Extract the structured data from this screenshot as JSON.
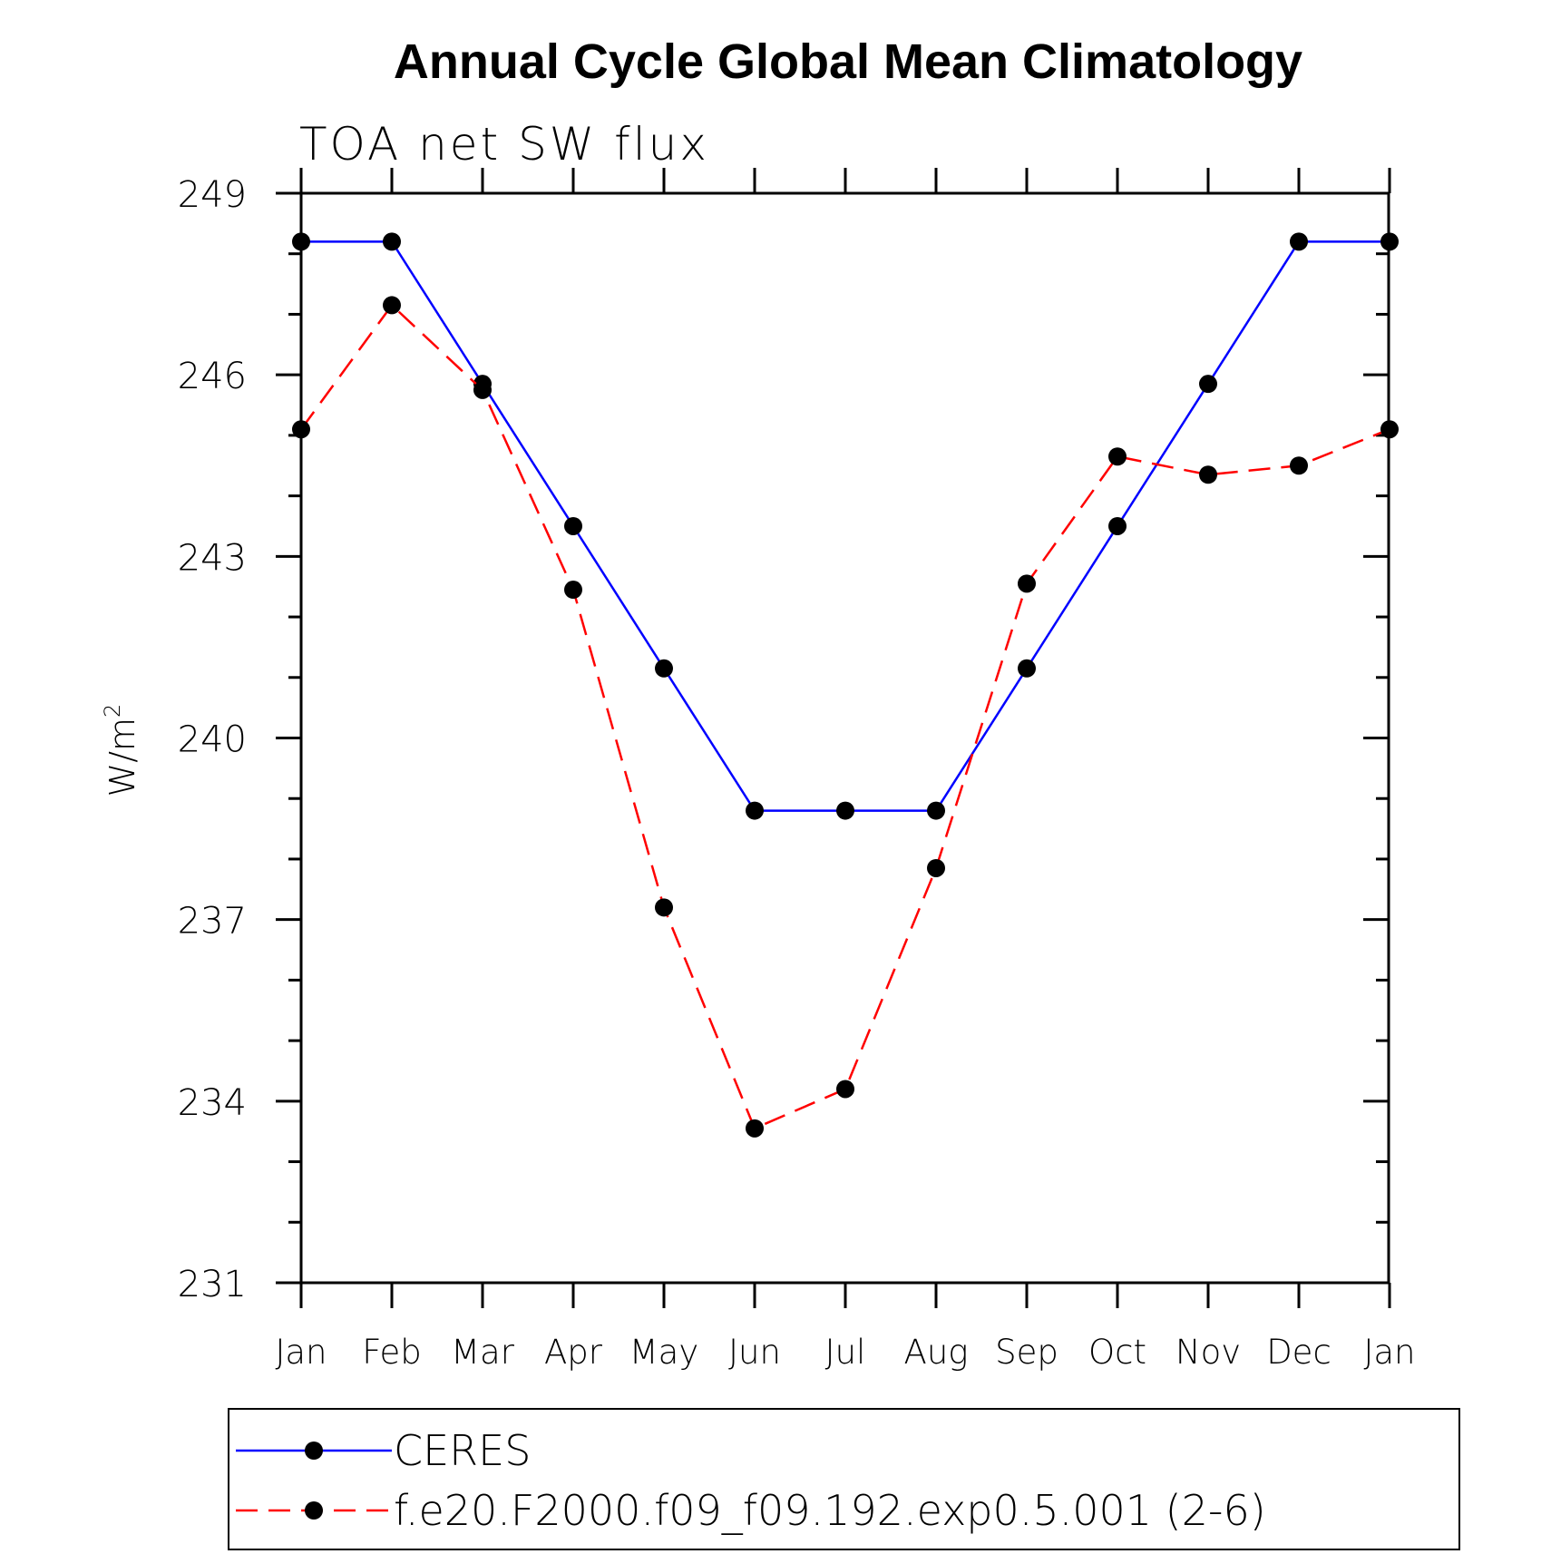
{
  "chart_data": {
    "type": "line",
    "title": "Annual Cycle Global Mean Climatology",
    "subtitle": "TOA net SW flux",
    "ylabel_base": "W/m",
    "ylabel_sup": "2",
    "xlabel": "",
    "categories": [
      "Jan",
      "Feb",
      "Mar",
      "Apr",
      "May",
      "Jun",
      "Jul",
      "Aug",
      "Sep",
      "Oct",
      "Nov",
      "Dec",
      "Jan"
    ],
    "yticks": [
      231,
      234,
      237,
      240,
      243,
      246,
      249
    ],
    "ylim": [
      231,
      249
    ],
    "grid": false,
    "legend_position": "bottom",
    "series": [
      {
        "name": "CERES",
        "color": "#0000ff",
        "dash": "solid",
        "marker": "filled-circle",
        "values": [
          248.2,
          248.2,
          245.85,
          243.5,
          241.15,
          238.8,
          238.8,
          238.8,
          241.15,
          243.5,
          245.85,
          248.2,
          248.2
        ]
      },
      {
        "name": "f.e20.F2000.f09_f09.192.exp0.5.001 (2-6)",
        "color": "#ff0000",
        "dash": "dashed",
        "marker": "filled-circle",
        "values": [
          245.1,
          247.15,
          245.75,
          242.45,
          237.2,
          233.55,
          234.2,
          237.85,
          242.55,
          244.65,
          244.35,
          244.5,
          245.1
        ]
      }
    ]
  }
}
